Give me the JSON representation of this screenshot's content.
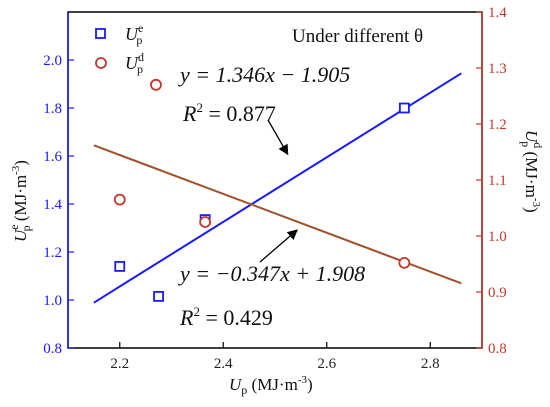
{
  "chart_data": {
    "type": "scatter",
    "annotation_title": "Under different θ",
    "xlabel": "U_p (MJ·m⁻³)",
    "ylabel_left": "U^e_p (MJ·m⁻³)",
    "ylabel_right": "U^d_p (MJ·m⁻³)",
    "xlim": [
      2.1,
      2.9
    ],
    "ylim_left": [
      0.8,
      2.2
    ],
    "ylim_right": [
      0.8,
      1.4
    ],
    "x_ticks": [
      "2.2",
      "2.4",
      "2.6",
      "2.8"
    ],
    "x_tick_values": [
      2.2,
      2.4,
      2.6,
      2.8
    ],
    "y_left_ticks": [
      "0.8",
      "1.0",
      "1.2",
      "1.4",
      "1.6",
      "1.8",
      "2.0"
    ],
    "y_left_tick_values": [
      0.8,
      1.0,
      1.2,
      1.4,
      1.6,
      1.8,
      2.0
    ],
    "y_right_ticks": [
      "0.8",
      "0.9",
      "1.0",
      "1.1",
      "1.2",
      "1.3",
      "1.4"
    ],
    "y_right_tick_values": [
      0.8,
      0.9,
      1.0,
      1.1,
      1.2,
      1.3,
      1.4
    ],
    "series": [
      {
        "name": "U^e_p",
        "axis": "left",
        "marker": "square",
        "color": "#1a1aff",
        "points": [
          [
            2.2,
            1.14
          ],
          [
            2.275,
            1.015
          ],
          [
            2.365,
            1.335
          ],
          [
            2.75,
            1.8
          ]
        ],
        "fit": {
          "slope": 1.346,
          "intercept": -1.905,
          "x_range": [
            2.15,
            2.86
          ]
        },
        "equation": "y = 1.346x − 1.905",
        "r2": "R² = 0.877"
      },
      {
        "name": "U^d_p",
        "axis": "right",
        "marker": "circle",
        "color": "#c0392b",
        "points": [
          [
            2.2,
            1.065
          ],
          [
            2.27,
            1.27
          ],
          [
            2.365,
            1.025
          ],
          [
            2.75,
            0.952
          ]
        ],
        "fit": {
          "slope": -0.347,
          "intercept": 1.908,
          "x_range": [
            2.15,
            2.86
          ]
        },
        "equation": "y = −0.347x + 1.908",
        "r2": "R² = 0.429"
      }
    ]
  },
  "ui": {
    "fit_line_colors": {
      "left": "#1a1aff",
      "right": "#a0522d"
    },
    "left_axis_color": "#1a1aff",
    "right_axis_color": "#c0392b"
  }
}
